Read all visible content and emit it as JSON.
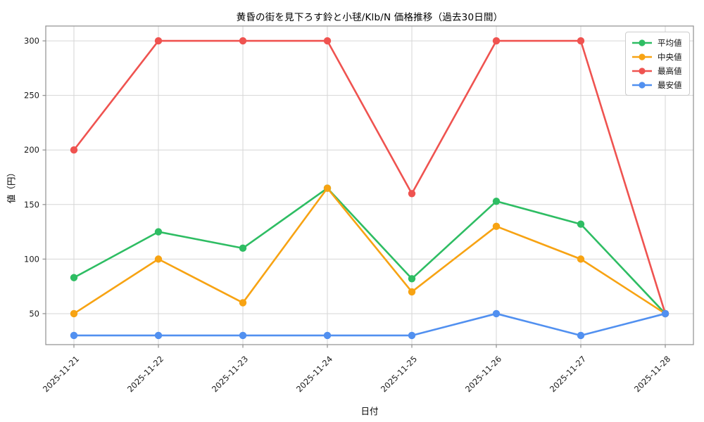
{
  "chart_data": {
    "type": "line",
    "title": "黄昏の街を見下ろす鈴と小毬/Klb/N 価格推移（過去30日間）",
    "xlabel": "日付",
    "ylabel": "値（円）",
    "categories": [
      "2025-11-21",
      "2025-11-22",
      "2025-11-23",
      "2025-11-24",
      "2025-11-25",
      "2025-11-26",
      "2025-11-27",
      "2025-11-28"
    ],
    "series": [
      {
        "key": "average",
        "name": "平均値",
        "color": "#2ebd63",
        "values": [
          83,
          125,
          110,
          165,
          82,
          153,
          132,
          50
        ]
      },
      {
        "key": "median",
        "name": "中央値",
        "color": "#f7a313",
        "values": [
          50,
          100,
          60,
          165,
          70,
          130,
          100,
          50
        ]
      },
      {
        "key": "max",
        "name": "最高値",
        "color": "#ef5350",
        "values": [
          200,
          300,
          300,
          300,
          160,
          300,
          300,
          50
        ]
      },
      {
        "key": "min",
        "name": "最安値",
        "color": "#5190f0",
        "values": [
          30,
          30,
          30,
          30,
          30,
          50,
          30,
          50
        ]
      }
    ],
    "yticks": [
      50,
      100,
      150,
      200,
      250,
      300
    ],
    "ylim": [
      21.6,
      313.6
    ],
    "grid": true,
    "legend_position": "top-right",
    "colors": {
      "grid": "#d6d6d6",
      "spine": "#8f8f8f",
      "tick_label": "#1a1a1a",
      "background": "#ffffff"
    }
  }
}
